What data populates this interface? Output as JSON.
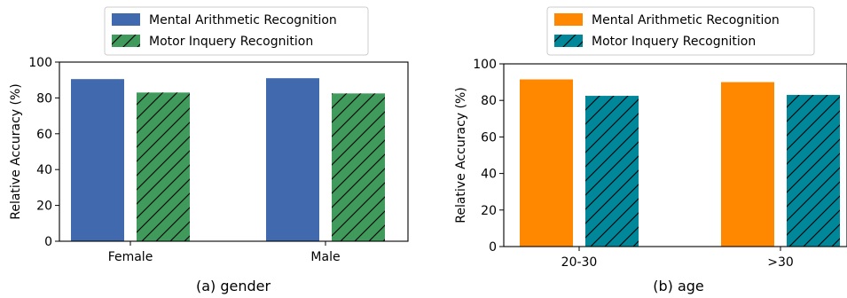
{
  "chart_data": [
    {
      "type": "bar",
      "caption": "(a) gender",
      "ylabel": "Relative Accuracy (%)",
      "ylim": [
        0,
        100
      ],
      "yticks": [
        0,
        20,
        40,
        60,
        80,
        100
      ],
      "categories": [
        "Female",
        "Male"
      ],
      "legend_position": "top-center",
      "series": [
        {
          "name": "Mental Arithmetic Recognition",
          "values": [
            90.5,
            91.0
          ],
          "color": "#4169ae",
          "hatch": false
        },
        {
          "name": "Motor Inquery Recognition",
          "values": [
            83.0,
            82.5
          ],
          "color": "#3f9a5c",
          "hatch": true
        }
      ]
    },
    {
      "type": "bar",
      "caption": "(b) age",
      "ylabel": "Relative Accuracy (%)",
      "ylim": [
        0,
        100
      ],
      "yticks": [
        0,
        20,
        40,
        60,
        80,
        100
      ],
      "categories": [
        "20-30",
        ">30"
      ],
      "legend_position": "top-center",
      "series": [
        {
          "name": "Mental Arithmetic Recognition",
          "values": [
            91.5,
            90.0
          ],
          "color": "#ff8800",
          "hatch": false
        },
        {
          "name": "Motor Inquery Recognition",
          "values": [
            82.5,
            83.0
          ],
          "color": "#00889a",
          "hatch": true
        }
      ]
    }
  ]
}
